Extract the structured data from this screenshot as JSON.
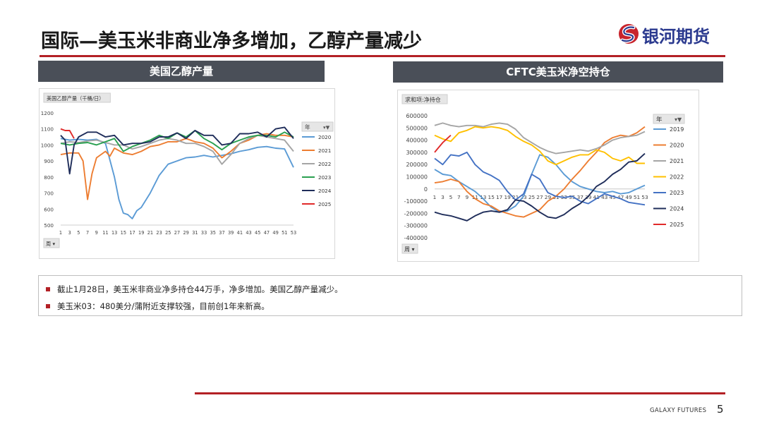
{
  "header": {
    "title": "国际—美玉米非商业净多增加，乙醇产量减少",
    "logo_text": "银河期货"
  },
  "panels": {
    "left_title": "美国乙醇产量",
    "right_title": "CFTC美玉米净空持仓"
  },
  "notes": [
    "截止1月28日，美玉米非商业净多持仓44万手，净多增加。美国乙醇产量减少。",
    "美玉米03：480美分/蒲附近支撑较强，目前创1年来新高。"
  ],
  "footer": {
    "brand": "GALAXY FUTURES",
    "page": "5"
  },
  "chart_data": [
    {
      "type": "line",
      "title": "",
      "field_label": "美国乙醇产量（千桶/日）",
      "legend_label": "年",
      "axis_button_label": "周",
      "ylim": [
        500,
        1200
      ],
      "y_ticks": [
        500,
        600,
        700,
        800,
        900,
        1000,
        1100,
        1200
      ],
      "x_ticks": [
        1,
        3,
        5,
        7,
        9,
        11,
        13,
        15,
        17,
        19,
        21,
        23,
        25,
        27,
        29,
        31,
        33,
        35,
        37,
        39,
        41,
        43,
        45,
        47,
        49,
        51,
        53
      ],
      "legend_position": "right",
      "grid": false,
      "series": [
        {
          "name": "2020",
          "color": "#5b9bd5",
          "x": [
            1,
            3,
            5,
            7,
            9,
            11,
            13,
            14,
            15,
            16,
            17,
            18,
            19,
            21,
            23,
            25,
            27,
            29,
            31,
            33,
            35,
            37,
            39,
            41,
            43,
            45,
            47,
            49,
            51,
            53
          ],
          "values": [
            1040,
            1030,
            1035,
            1030,
            1035,
            1010,
            800,
            660,
            575,
            565,
            540,
            590,
            610,
            700,
            810,
            880,
            900,
            920,
            925,
            935,
            925,
            935,
            945,
            960,
            970,
            985,
            990,
            980,
            975,
            860
          ]
        },
        {
          "name": "2021",
          "color": "#ed7d31",
          "x": [
            1,
            3,
            5,
            6,
            7,
            8,
            9,
            11,
            12,
            13,
            15,
            17,
            19,
            21,
            23,
            25,
            27,
            29,
            31,
            33,
            35,
            37,
            39,
            41,
            43,
            45,
            47,
            49,
            51,
            53
          ],
          "values": [
            940,
            950,
            950,
            900,
            660,
            820,
            920,
            960,
            930,
            980,
            950,
            940,
            960,
            990,
            1000,
            1020,
            1020,
            1040,
            1020,
            1010,
            980,
            920,
            960,
            1010,
            1030,
            1060,
            1070,
            1060,
            1060,
            1050
          ]
        },
        {
          "name": "2022",
          "color": "#a5a5a5",
          "x": [
            1,
            3,
            5,
            7,
            9,
            11,
            13,
            15,
            17,
            19,
            21,
            23,
            25,
            27,
            29,
            31,
            33,
            35,
            37,
            39,
            41,
            43,
            45,
            47,
            49,
            51,
            53
          ],
          "values": [
            1010,
            1020,
            1015,
            1025,
            1030,
            1015,
            1000,
            1000,
            975,
            990,
            1010,
            1030,
            1040,
            1030,
            1010,
            1010,
            990,
            960,
            880,
            940,
            1010,
            1040,
            1060,
            1050,
            1040,
            1030,
            960
          ]
        },
        {
          "name": "2023",
          "color": "#2aa050",
          "x": [
            1,
            3,
            5,
            7,
            9,
            11,
            13,
            15,
            17,
            19,
            21,
            23,
            25,
            27,
            29,
            31,
            33,
            35,
            37,
            39,
            41,
            43,
            45,
            47,
            49,
            51,
            53
          ],
          "values": [
            1010,
            1000,
            1010,
            1015,
            1000,
            1020,
            1040,
            960,
            990,
            1010,
            1030,
            1060,
            1040,
            1075,
            1050,
            1090,
            1040,
            1010,
            970,
            1010,
            1030,
            1050,
            1060,
            1060,
            1050,
            1080,
            1050
          ]
        },
        {
          "name": "2024",
          "color": "#1f2d5a",
          "x": [
            1,
            2,
            3,
            4,
            5,
            7,
            9,
            11,
            13,
            15,
            17,
            19,
            21,
            23,
            25,
            27,
            29,
            31,
            33,
            35,
            37,
            39,
            41,
            43,
            45,
            47,
            49,
            51,
            53
          ],
          "values": [
            1060,
            1030,
            820,
            1000,
            1050,
            1080,
            1080,
            1050,
            1060,
            1000,
            1010,
            1010,
            1020,
            1050,
            1050,
            1075,
            1040,
            1090,
            1060,
            1060,
            1000,
            1010,
            1070,
            1070,
            1080,
            1050,
            1100,
            1110,
            1040
          ]
        },
        {
          "name": "2025",
          "color": "#e02a2a",
          "x": [
            1,
            2,
            3,
            4
          ],
          "values": [
            1100,
            1090,
            1090,
            1040
          ]
        }
      ]
    },
    {
      "type": "line",
      "title": "",
      "field_label": "求和项:净持仓",
      "legend_label": "年",
      "axis_button_label": "周",
      "ylim": [
        -400000,
        600000
      ],
      "y_ticks": [
        -400000,
        -300000,
        -200000,
        -100000,
        0,
        100000,
        200000,
        300000,
        400000,
        500000,
        600000
      ],
      "x_ticks": [
        1,
        3,
        5,
        7,
        9,
        11,
        13,
        15,
        17,
        19,
        21,
        23,
        25,
        27,
        29,
        31,
        33,
        35,
        37,
        39,
        41,
        43,
        45,
        47,
        49,
        51,
        53
      ],
      "legend_position": "right",
      "grid": false,
      "series": [
        {
          "name": "2019",
          "color": "#5b9bd5",
          "x": [
            1,
            3,
            5,
            7,
            9,
            11,
            13,
            15,
            17,
            19,
            21,
            23,
            25,
            27,
            29,
            31,
            33,
            35,
            37,
            39,
            41,
            43,
            45,
            47,
            49,
            51,
            53
          ],
          "values": [
            160000,
            120000,
            110000,
            60000,
            20000,
            -20000,
            -80000,
            -150000,
            -190000,
            -180000,
            -140000,
            -60000,
            120000,
            280000,
            260000,
            200000,
            120000,
            60000,
            20000,
            0,
            -20000,
            -30000,
            -20000,
            -40000,
            -30000,
            0,
            30000
          ]
        },
        {
          "name": "2020",
          "color": "#ed7d31",
          "x": [
            1,
            3,
            5,
            7,
            9,
            11,
            13,
            15,
            17,
            19,
            21,
            23,
            25,
            27,
            29,
            31,
            33,
            35,
            37,
            39,
            41,
            43,
            45,
            47,
            49,
            51,
            53
          ],
          "values": [
            50000,
            60000,
            80000,
            60000,
            -20000,
            -80000,
            -120000,
            -140000,
            -180000,
            -200000,
            -220000,
            -230000,
            -200000,
            -170000,
            -100000,
            -60000,
            0,
            80000,
            150000,
            230000,
            300000,
            380000,
            420000,
            440000,
            430000,
            460000,
            510000
          ]
        },
        {
          "name": "2021",
          "color": "#a5a5a5",
          "x": [
            1,
            3,
            5,
            7,
            9,
            11,
            13,
            15,
            17,
            19,
            21,
            23,
            25,
            27,
            29,
            31,
            33,
            35,
            37,
            39,
            41,
            43,
            45,
            47,
            49,
            51,
            53
          ],
          "values": [
            520000,
            540000,
            520000,
            510000,
            520000,
            520000,
            510000,
            530000,
            540000,
            530000,
            490000,
            420000,
            380000,
            340000,
            310000,
            290000,
            300000,
            310000,
            320000,
            310000,
            330000,
            360000,
            400000,
            420000,
            430000,
            440000,
            470000
          ]
        },
        {
          "name": "2022",
          "color": "#ffc000",
          "x": [
            1,
            3,
            5,
            7,
            9,
            11,
            13,
            15,
            17,
            19,
            21,
            23,
            25,
            27,
            29,
            31,
            33,
            35,
            37,
            39,
            41,
            43,
            45,
            47,
            49,
            51,
            53
          ],
          "values": [
            440000,
            410000,
            390000,
            460000,
            480000,
            510000,
            500000,
            510000,
            500000,
            480000,
            430000,
            390000,
            360000,
            310000,
            230000,
            200000,
            230000,
            260000,
            280000,
            280000,
            320000,
            300000,
            250000,
            230000,
            260000,
            210000,
            210000
          ]
        },
        {
          "name": "2023",
          "color": "#4472c4",
          "x": [
            1,
            3,
            5,
            7,
            9,
            11,
            13,
            15,
            17,
            19,
            21,
            23,
            25,
            27,
            29,
            31,
            33,
            35,
            37,
            39,
            41,
            43,
            45,
            47,
            49,
            51,
            53
          ],
          "values": [
            250000,
            200000,
            280000,
            270000,
            300000,
            200000,
            140000,
            110000,
            70000,
            -20000,
            -90000,
            -40000,
            120000,
            80000,
            -30000,
            -60000,
            -70000,
            -60000,
            -100000,
            -120000,
            -80000,
            -40000,
            -60000,
            -80000,
            -110000,
            -120000,
            -130000
          ]
        },
        {
          "name": "2024",
          "color": "#1f2d5a",
          "x": [
            1,
            3,
            5,
            7,
            9,
            11,
            13,
            15,
            17,
            19,
            21,
            23,
            25,
            27,
            29,
            31,
            33,
            35,
            37,
            39,
            41,
            43,
            45,
            47,
            49,
            51,
            53
          ],
          "values": [
            -190000,
            -210000,
            -220000,
            -240000,
            -260000,
            -220000,
            -190000,
            -180000,
            -190000,
            -170000,
            -90000,
            -100000,
            -140000,
            -190000,
            -230000,
            -240000,
            -210000,
            -160000,
            -120000,
            -60000,
            20000,
            60000,
            120000,
            160000,
            220000,
            230000,
            290000
          ]
        },
        {
          "name": "2025",
          "color": "#e02a2a",
          "x": [
            1,
            2,
            3,
            4,
            5
          ],
          "values": [
            300000,
            340000,
            380000,
            410000,
            440000
          ]
        }
      ]
    }
  ]
}
